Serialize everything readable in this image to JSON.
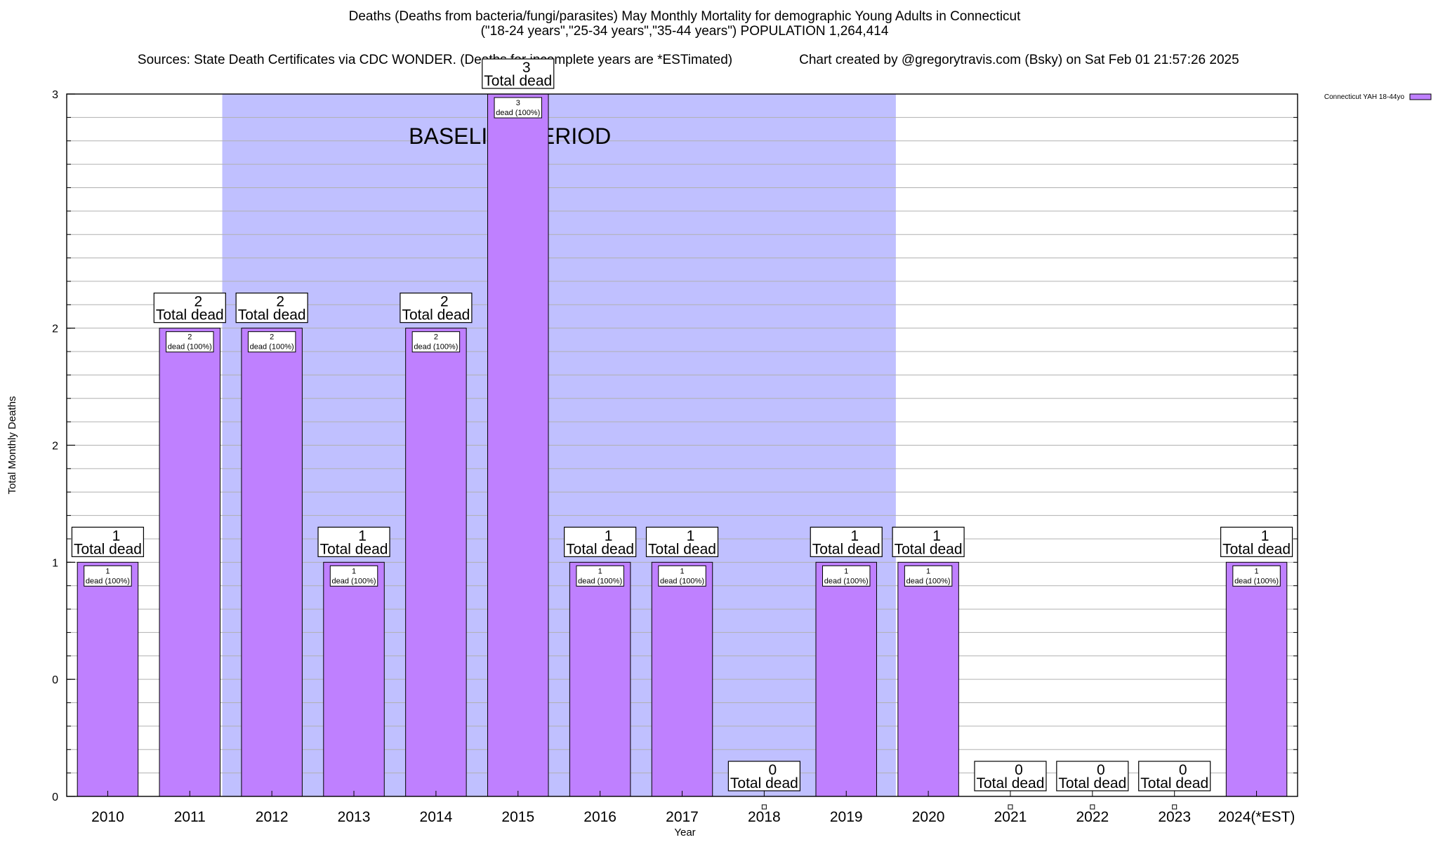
{
  "title": {
    "line1": "Deaths (Deaths from bacteria/fungi/parasites) May Monthly Mortality for demographic Young Adults in Connecticut",
    "line2": "(\"18-24 years\",\"25-34 years\",\"35-44 years\") POPULATION 1,264,414",
    "line3_sources": "Sources: State Death Certificates via CDC WONDER. (Deaths for incomplete years are *ESTimated)",
    "line3_credit": "Chart created by @gregorytravis.com (Bsky) on Sat Feb 01 21:57:26 2025"
  },
  "colors": {
    "bar": "#bf80ff",
    "baseline": "#c0c0ff",
    "grid": "#b0b0b0"
  },
  "chart_data": {
    "type": "bar",
    "title": "Deaths (Deaths from bacteria/fungi/parasites) May Monthly Mortality for demographic Young Adults in Connecticut",
    "xlabel": "Year",
    "ylabel": "Total Monthly Deaths",
    "categories": [
      "2010",
      "2011",
      "2012",
      "2013",
      "2014",
      "2015",
      "2016",
      "2017",
      "2018",
      "2019",
      "2020",
      "2021",
      "2022",
      "2023",
      "2024(*EST)"
    ],
    "series": [
      {
        "name": "Connecticut YAH 18-44yo",
        "values": [
          1,
          2,
          2,
          1,
          2,
          3,
          1,
          1,
          0,
          1,
          1,
          0,
          0,
          0,
          1
        ]
      }
    ],
    "ylim": [
      0,
      3
    ],
    "y_tick_labels": [
      "0",
      "0",
      "1",
      "2",
      "2",
      "3"
    ],
    "y_tick_values": [
      0,
      0.5,
      1,
      1.5,
      2,
      3
    ],
    "total_label": "Total dead",
    "inner_label": "dead (100%)",
    "baseline_region": {
      "label": "BASELINE PERIOD",
      "from": "2012",
      "to": "2019"
    },
    "legend": {
      "position": "top-right"
    },
    "grid": true
  }
}
